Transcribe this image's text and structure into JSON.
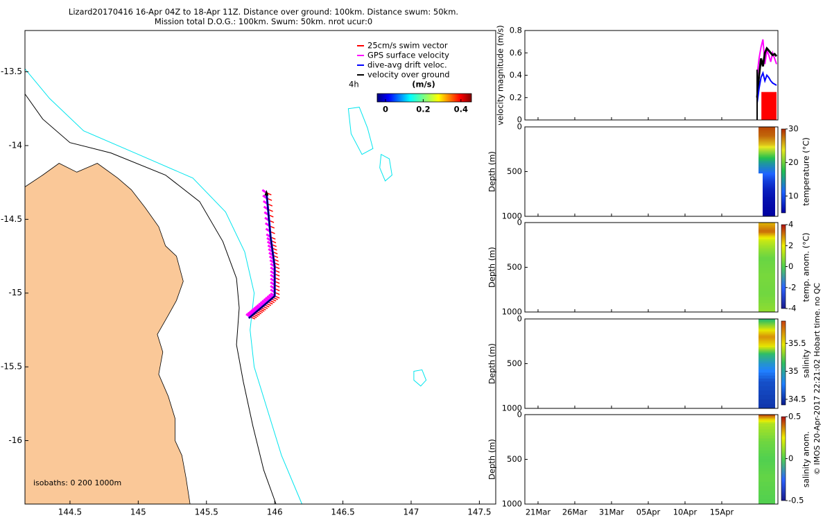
{
  "header": {
    "line1": "Lizard20170416 16-Apr 04Z to 18-Apr 11Z. Distance over ground: 100km. Distance swum: 50km.",
    "line2": "Mission total D.O.G.: 100km. Swum: 50km. nrot ucur:0"
  },
  "credit": "© IMOS 20-Apr-2017 22:21:02 Hobart time. no QC",
  "colors": {
    "land": "#FAC898",
    "isobath_200": "#000000",
    "isobath_1000": "#00E5EE",
    "swim": "#FF0000",
    "gps": "#FF00FF",
    "dive": "#0000FF",
    "over_ground": "#000000"
  },
  "chart_data": [
    {
      "type": "map",
      "x_ticks": [
        "144.5",
        "145",
        "145.5",
        "146",
        "146.5",
        "147",
        "147.5"
      ],
      "y_ticks": [
        "-13.5",
        "-14",
        "-14.5",
        "-15",
        "-15.5",
        "-16"
      ],
      "xlim": [
        144.17,
        147.62
      ],
      "ylim": [
        -16.43,
        -13.22
      ],
      "isobaths_label": "isobaths: 0   200  1000m",
      "legend": {
        "items": [
          {
            "label": "25cm/s swim vector",
            "color": "#FF0000"
          },
          {
            "label": "GPS surface velocity",
            "color": "#FF00FF"
          },
          {
            "label": "dive-avg drift veloc.",
            "color": "#0000FF"
          },
          {
            "label": "velocity over ground",
            "color": "#000000"
          }
        ],
        "interval_label": "4h",
        "colorbar_title": "(m/s)",
        "colorbar_ticks": [
          "0",
          "0.2",
          "0.4"
        ],
        "colorbar_range": [
          0,
          0.5
        ]
      },
      "track": [
        {
          "lon": 145.94,
          "lat": -14.32
        },
        {
          "lon": 145.97,
          "lat": -14.62
        },
        {
          "lon": 146.0,
          "lat": -14.82
        },
        {
          "lon": 146.0,
          "lat": -15.02
        },
        {
          "lon": 145.9,
          "lat": -15.1
        },
        {
          "lon": 145.81,
          "lat": -15.17
        }
      ],
      "coastline": [
        {
          "lon": 144.17,
          "lat": -14.28
        },
        {
          "lon": 144.3,
          "lat": -14.2
        },
        {
          "lon": 144.42,
          "lat": -14.12
        },
        {
          "lon": 144.55,
          "lat": -14.18
        },
        {
          "lon": 144.7,
          "lat": -14.12
        },
        {
          "lon": 144.85,
          "lat": -14.22
        },
        {
          "lon": 144.95,
          "lat": -14.3
        },
        {
          "lon": 145.05,
          "lat": -14.42
        },
        {
          "lon": 145.15,
          "lat": -14.55
        },
        {
          "lon": 145.2,
          "lat": -14.68
        },
        {
          "lon": 145.28,
          "lat": -14.75
        },
        {
          "lon": 145.33,
          "lat": -14.92
        },
        {
          "lon": 145.28,
          "lat": -15.05
        },
        {
          "lon": 145.22,
          "lat": -15.15
        },
        {
          "lon": 145.14,
          "lat": -15.28
        },
        {
          "lon": 145.18,
          "lat": -15.4
        },
        {
          "lon": 145.15,
          "lat": -15.55
        },
        {
          "lon": 145.22,
          "lat": -15.7
        },
        {
          "lon": 145.27,
          "lat": -15.85
        },
        {
          "lon": 145.27,
          "lat": -16.0
        },
        {
          "lon": 145.32,
          "lat": -16.1
        },
        {
          "lon": 145.35,
          "lat": -16.25
        },
        {
          "lon": 145.38,
          "lat": -16.43
        }
      ],
      "isobath_200": [
        {
          "lon": 144.17,
          "lat": -13.65
        },
        {
          "lon": 144.3,
          "lat": -13.82
        },
        {
          "lon": 144.5,
          "lat": -13.98
        },
        {
          "lon": 144.8,
          "lat": -14.05
        },
        {
          "lon": 145.2,
          "lat": -14.2
        },
        {
          "lon": 145.45,
          "lat": -14.38
        },
        {
          "lon": 145.62,
          "lat": -14.65
        },
        {
          "lon": 145.72,
          "lat": -14.9
        },
        {
          "lon": 145.74,
          "lat": -15.1
        },
        {
          "lon": 145.72,
          "lat": -15.35
        },
        {
          "lon": 145.77,
          "lat": -15.6
        },
        {
          "lon": 145.84,
          "lat": -15.9
        },
        {
          "lon": 145.92,
          "lat": -16.2
        },
        {
          "lon": 146.01,
          "lat": -16.43
        }
      ],
      "isobath_1000": [
        {
          "lon": 144.17,
          "lat": -13.48
        },
        {
          "lon": 144.35,
          "lat": -13.68
        },
        {
          "lon": 144.6,
          "lat": -13.9
        },
        {
          "lon": 145.0,
          "lat": -14.06
        },
        {
          "lon": 145.4,
          "lat": -14.22
        },
        {
          "lon": 145.64,
          "lat": -14.45
        },
        {
          "lon": 145.78,
          "lat": -14.72
        },
        {
          "lon": 145.85,
          "lat": -15.0
        },
        {
          "lon": 145.82,
          "lat": -15.25
        },
        {
          "lon": 145.85,
          "lat": -15.5
        },
        {
          "lon": 145.95,
          "lat": -15.8
        },
        {
          "lon": 146.05,
          "lat": -16.1
        },
        {
          "lon": 146.2,
          "lat": -16.43
        }
      ],
      "reefs": [
        [
          {
            "lon": 146.54,
            "lat": -13.75
          },
          {
            "lon": 146.62,
            "lat": -13.74
          },
          {
            "lon": 146.68,
            "lat": -13.88
          },
          {
            "lon": 146.72,
            "lat": -14.02
          },
          {
            "lon": 146.64,
            "lat": -14.06
          },
          {
            "lon": 146.56,
            "lat": -13.92
          }
        ],
        [
          {
            "lon": 146.78,
            "lat": -14.06
          },
          {
            "lon": 146.84,
            "lat": -14.09
          },
          {
            "lon": 146.86,
            "lat": -14.2
          },
          {
            "lon": 146.81,
            "lat": -14.24
          },
          {
            "lon": 146.77,
            "lat": -14.15
          }
        ],
        [
          {
            "lon": 147.02,
            "lat": -15.53
          },
          {
            "lon": 147.08,
            "lat": -15.52
          },
          {
            "lon": 147.11,
            "lat": -15.59
          },
          {
            "lon": 147.07,
            "lat": -15.63
          },
          {
            "lon": 147.02,
            "lat": -15.59
          }
        ]
      ]
    },
    {
      "type": "line",
      "ylabel": "velocity magnitude (m/s)",
      "ylim": [
        0,
        0.8
      ],
      "y_ticks": [
        "0",
        "0.2",
        "0.4",
        "0.6",
        "0.8"
      ],
      "series": [
        {
          "color": "#FF00FF",
          "x": [
            0.0,
            0.1,
            0.2,
            0.3,
            0.4,
            0.5,
            0.6,
            0.7,
            0.8,
            0.9,
            1.0
          ],
          "values": [
            0.4,
            0.55,
            0.65,
            0.72,
            0.5,
            0.62,
            0.58,
            0.52,
            0.6,
            0.55,
            0.5
          ]
        },
        {
          "color": "#000000",
          "x": [
            0.0,
            0.1,
            0.2,
            0.3,
            0.4,
            0.5,
            0.6,
            0.7,
            0.8,
            0.9,
            1.0
          ],
          "values": [
            0.2,
            0.4,
            0.55,
            0.48,
            0.6,
            0.64,
            0.62,
            0.6,
            0.58,
            0.59,
            0.57
          ]
        },
        {
          "color": "#0000FF",
          "x": [
            0.0,
            0.1,
            0.2,
            0.3,
            0.4,
            0.5,
            0.6,
            0.7,
            0.8,
            0.9,
            1.0
          ],
          "values": [
            0.15,
            0.28,
            0.38,
            0.42,
            0.35,
            0.4,
            0.38,
            0.35,
            0.33,
            0.32,
            0.31
          ]
        }
      ],
      "bar": {
        "color": "#FF0000",
        "x0": 0.22,
        "x1": 1.0,
        "value": 0.25
      }
    },
    {
      "type": "heatmap",
      "ylabel": "Depth (m)",
      "ylim": [
        1000,
        0
      ],
      "y_ticks": [
        "0",
        "500",
        "1000"
      ],
      "colorbar_label": "temperature (°C)",
      "colorbar_ticks": [
        "30",
        "20",
        "10"
      ],
      "colorbar_range": [
        5,
        30
      ],
      "profile": [
        {
          "depth": 0,
          "value": 29
        },
        {
          "depth": 100,
          "value": 28
        },
        {
          "depth": 200,
          "value": 25
        },
        {
          "depth": 300,
          "value": 20
        },
        {
          "depth": 400,
          "value": 15
        },
        {
          "depth": 500,
          "value": 12
        },
        {
          "depth": 600,
          "value": 9
        },
        {
          "depth": 700,
          "value": 7
        },
        {
          "depth": 800,
          "value": 6
        },
        {
          "depth": 1000,
          "value": 5
        }
      ]
    },
    {
      "type": "heatmap",
      "ylabel": "Depth (m)",
      "ylim": [
        1000,
        0
      ],
      "y_ticks": [
        "0",
        "500",
        "1000"
      ],
      "colorbar_label": "temp. anom. (°C)",
      "colorbar_ticks": [
        "4",
        "2",
        "0",
        "-2",
        "-4"
      ],
      "colorbar_range": [
        -4,
        4
      ],
      "profile": [
        {
          "depth": 0,
          "value": 2.5
        },
        {
          "depth": 100,
          "value": 3.2
        },
        {
          "depth": 200,
          "value": 1.5
        },
        {
          "depth": 300,
          "value": 0.8
        },
        {
          "depth": 400,
          "value": 0.3
        },
        {
          "depth": 600,
          "value": 0.5
        },
        {
          "depth": 800,
          "value": 0.4
        },
        {
          "depth": 1000,
          "value": 0.8
        }
      ]
    },
    {
      "type": "heatmap",
      "ylabel": "Depth (m)",
      "ylim": [
        1000,
        0
      ],
      "y_ticks": [
        "0",
        "500",
        "1000"
      ],
      "colorbar_label": "salinity",
      "colorbar_ticks": [
        "35.5",
        "35",
        "34.5"
      ],
      "colorbar_range": [
        34.4,
        35.9
      ],
      "profile": [
        {
          "depth": 0,
          "value": 35.1
        },
        {
          "depth": 100,
          "value": 35.4
        },
        {
          "depth": 200,
          "value": 35.7
        },
        {
          "depth": 300,
          "value": 35.5
        },
        {
          "depth": 400,
          "value": 35.1
        },
        {
          "depth": 500,
          "value": 34.9
        },
        {
          "depth": 700,
          "value": 34.6
        },
        {
          "depth": 1000,
          "value": 34.5
        }
      ]
    },
    {
      "type": "heatmap",
      "ylabel": "Depth (m)",
      "ylim": [
        1000,
        0
      ],
      "y_ticks": [
        "0",
        "500",
        "1000"
      ],
      "colorbar_label": "salinity anom.",
      "colorbar_ticks": [
        "0.5",
        "0",
        "-0.5"
      ],
      "colorbar_range": [
        -0.5,
        0.5
      ],
      "x_ticks": [
        "21Mar",
        "26Mar",
        "31Mar",
        "05Apr",
        "10Apr",
        "15Apr"
      ],
      "profile": [
        {
          "depth": 0,
          "value": 0.45
        },
        {
          "depth": 100,
          "value": 0.15
        },
        {
          "depth": 300,
          "value": 0.05
        },
        {
          "depth": 500,
          "value": 0.0
        },
        {
          "depth": 700,
          "value": 0.03
        },
        {
          "depth": 1000,
          "value": 0.0
        }
      ]
    }
  ]
}
